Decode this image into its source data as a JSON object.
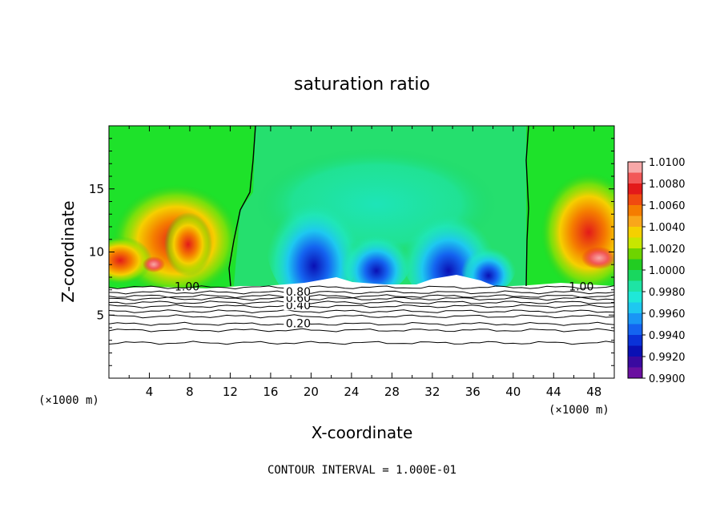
{
  "chart_data": {
    "type": "heatmap",
    "title": "saturation ratio",
    "xlabel": "X-coordinate",
    "ylabel": "Z-coordinate",
    "x_unit_left": "(×1000 m)",
    "x_unit_right": "(×1000 m)",
    "footer": "CONTOUR INTERVAL = 1.000E-01",
    "xlim": [
      0,
      50
    ],
    "ylim": [
      0,
      20
    ],
    "x_ticks": [
      4,
      8,
      12,
      16,
      20,
      24,
      28,
      32,
      36,
      40,
      44,
      48
    ],
    "y_ticks": [
      5,
      10,
      15
    ],
    "colorbar": {
      "labels": [
        "1.0100",
        "1.0080",
        "1.0060",
        "1.0040",
        "1.0020",
        "1.0000",
        "0.9980",
        "0.9960",
        "0.9940",
        "0.9920",
        "0.9900"
      ],
      "colors": [
        "#f7a8a8",
        "#f25858",
        "#e31a1a",
        "#f04a10",
        "#f57c00",
        "#f9a61a",
        "#f5d000",
        "#c8e600",
        "#6ed400",
        "#22cc22",
        "#19d75f",
        "#1ee4a4",
        "#1fe8d8",
        "#1ec8f0",
        "#1996f5",
        "#1464f0",
        "#0a32d8",
        "#0a10b4",
        "#3a0aa0",
        "#6a10a0"
      ]
    },
    "contour_levels": [
      {
        "value": 0.2,
        "label": "0.20",
        "z": 4.3
      },
      {
        "value": 0.4,
        "label": "0.40",
        "z": 5.7
      },
      {
        "value": 0.6,
        "label": "0.60",
        "z": 6.3
      },
      {
        "value": 0.8,
        "label": "0.80",
        "z": 6.8
      },
      {
        "value": 1.0,
        "label": "1.00",
        "z": 7.2
      }
    ],
    "unlabeled_contours_z": [
      2.8,
      3.8,
      4.9,
      5.3,
      6.0,
      6.5
    ],
    "boundary_label": "1.00",
    "saturation_boundary_x": [
      13,
      41.5
    ]
  }
}
